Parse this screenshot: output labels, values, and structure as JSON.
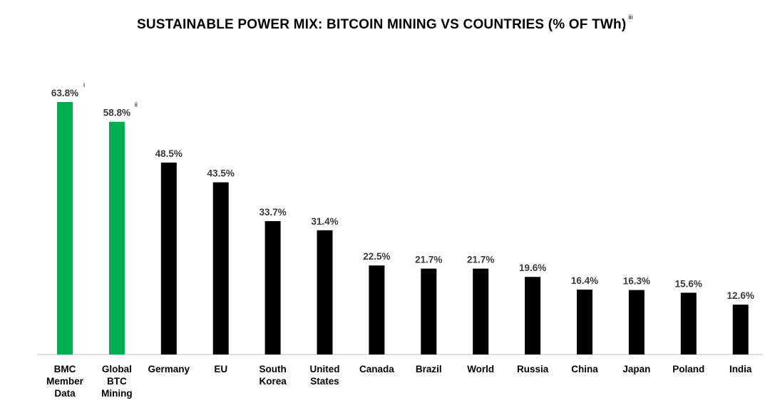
{
  "chart_data": {
    "type": "bar",
    "title": "SUSTAINABLE POWER MIX: BITCOIN MINING VS COUNTRIES (% OF TWh)",
    "title_note": "iii",
    "categories": [
      {
        "label": [
          "BMC",
          "Member",
          "Data"
        ],
        "note": "i"
      },
      {
        "label": [
          "Global",
          "BTC",
          "Mining"
        ],
        "note": "ii"
      },
      {
        "label": [
          "Germany"
        ]
      },
      {
        "label": [
          "EU"
        ]
      },
      {
        "label": [
          "South",
          "Korea"
        ]
      },
      {
        "label": [
          "United",
          "States"
        ]
      },
      {
        "label": [
          "Canada"
        ]
      },
      {
        "label": [
          "Brazil"
        ]
      },
      {
        "label": [
          "World"
        ]
      },
      {
        "label": [
          "Russia"
        ]
      },
      {
        "label": [
          "China"
        ]
      },
      {
        "label": [
          "Japan"
        ]
      },
      {
        "label": [
          "Poland"
        ]
      },
      {
        "label": [
          "India"
        ]
      }
    ],
    "values": [
      63.8,
      58.8,
      48.5,
      43.5,
      33.7,
      31.4,
      22.5,
      21.7,
      21.7,
      19.6,
      16.4,
      16.3,
      15.6,
      12.6
    ],
    "value_labels": [
      "63.8%",
      "58.8%",
      "48.5%",
      "43.5%",
      "33.7%",
      "31.4%",
      "22.5%",
      "21.7%",
      "21.7%",
      "19.6%",
      "16.4%",
      "16.3%",
      "15.6%",
      "12.6%"
    ],
    "highlight_color": "#00b050",
    "default_color": "#000000",
    "highlight_indices": [
      0,
      1
    ],
    "ylim": [
      0,
      63.8
    ],
    "grid": false,
    "legend": "none"
  }
}
